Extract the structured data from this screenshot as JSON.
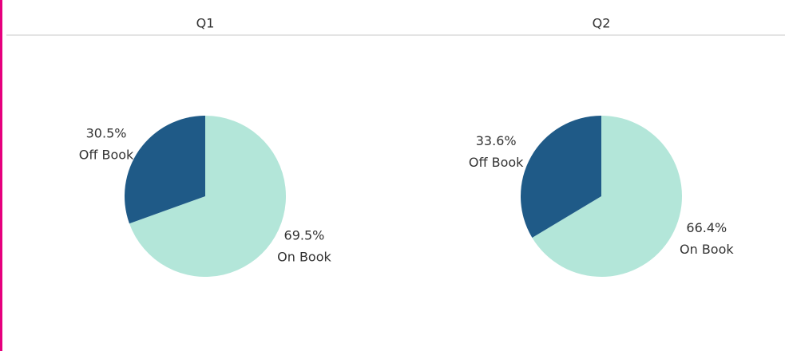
{
  "chart_data": [
    {
      "type": "pie",
      "title": "Q1",
      "categories": [
        "On Book",
        "Off Book"
      ],
      "values": [
        69.5,
        30.5
      ],
      "value_labels": [
        "69.5%",
        "30.5%"
      ],
      "colors": [
        "#b3e6d9",
        "#1f5a87"
      ]
    },
    {
      "type": "pie",
      "title": "Q2",
      "categories": [
        "On Book",
        "Off Book"
      ],
      "values": [
        66.4,
        33.6
      ],
      "value_labels": [
        "66.4%",
        "33.6%"
      ],
      "colors": [
        "#b3e6d9",
        "#1f5a87"
      ]
    }
  ]
}
